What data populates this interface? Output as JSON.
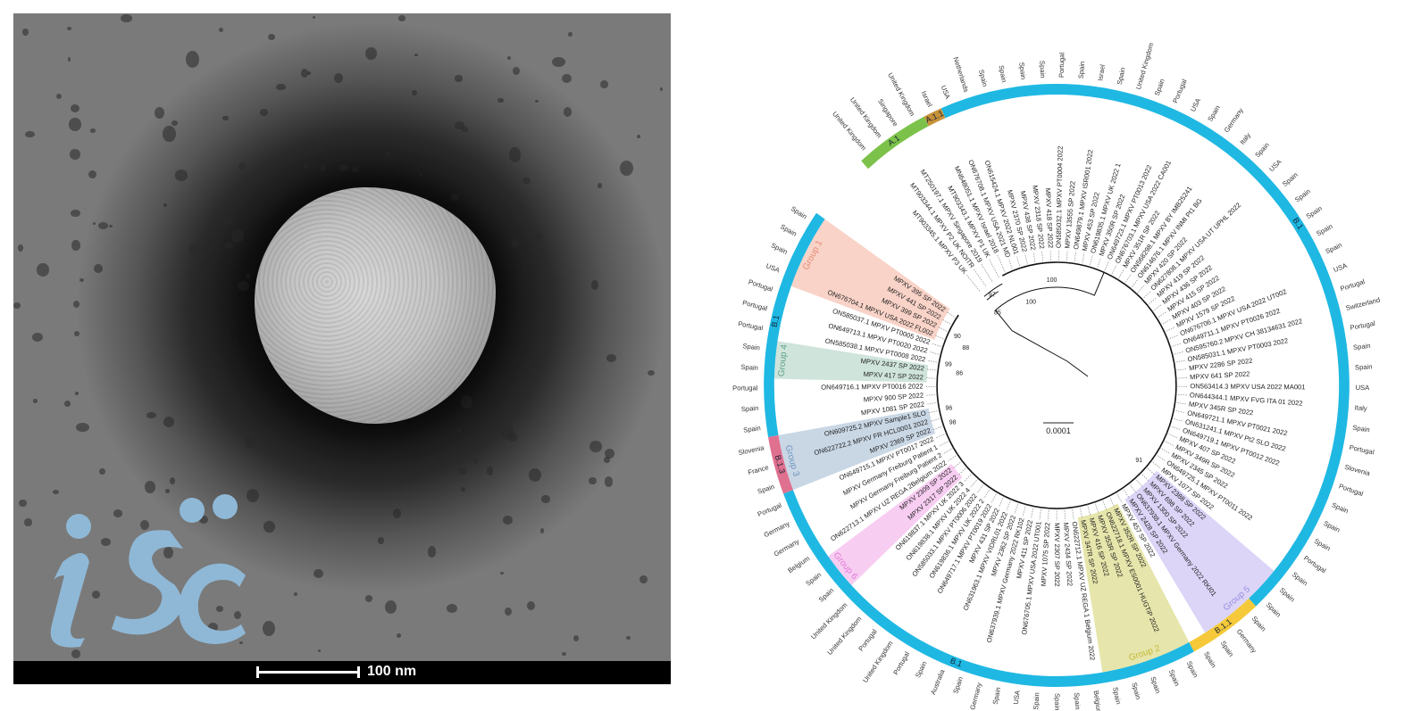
{
  "micrograph": {
    "scale_label": "100 nm",
    "logo_text": "iSC"
  },
  "tree": {
    "scale_label": "0.0001",
    "bootstrap_labels": [
      "100",
      "100",
      "97",
      "85",
      "90",
      "88",
      "99",
      "86",
      "96",
      "98",
      "91"
    ],
    "leaves": [
      "MPXV 395 SP 2022",
      "MPXV 441 SP 2022",
      "MPXV 399 SP 2022",
      "ON676704.1 MPXV USA 2022 FL002",
      "ON585037.1 MPXV PT0005 2022",
      "ON649713.1 MPXV PT0020 2022",
      "ON585038.1 MPXV PT0008 2022",
      "MPXV 2437 SP 2022",
      "MPXV 417 SP 2022",
      "ON649716.1 MPXV PT0016 2022",
      "MPXV 900 SP 2022",
      "MPXV 1081 SP 2022",
      "ON609725.2 MPXV Sample1 SLO",
      "ON622722.2 MPXV FR HCL0001 2022",
      "MPXV 2369 SP 2022",
      "ON649715.1 MPXV PT0017 2022",
      "MPXV Germany Freiburg Patient 1",
      "MPXV Germany Freiburg Patient 2",
      "ON622713.1 MPXV UZ REGA 2Belgium 2022",
      "MPXV 2309 SP 2022",
      "MPXV 2317 SP 2022",
      "ON619837.1 MPXV UK 2022 3",
      "ON619838.1 MPXV UK 2022 4",
      "ON585033.1 MPXV PT0006 2022",
      "ON619836.1 MPXV UK 2022 2",
      "ON649717.1 MPXV PT0019 2022",
      "MPXV 431 SP 2022",
      "ON631963.1 MPXV VIDRL01 2022",
      "MPXV 2362 SP 2022",
      "ON637939.1 MPXV Germany 2022 RK102",
      "MPXV 411 SP 2022",
      "ON676705.1 MPXV USA 2022 UT001",
      "MPXV 1075 SP 2022",
      "MPXV 2307 SP 2022",
      "MPXV 2434 SP 2022",
      "ON622712.1 MPXV UZ REGA 1 Belgium 2022",
      "MPXV 347R SP 2022",
      "MPXV 416 SP 2022",
      "MPXV 353R SP 2022",
      "ON622718.1 MPXV ES0001 HUGTiP 2022",
      "MPXV 352R SP 2022",
      "MPXV 457 SP 2022",
      "MPXV 2428 SP 2022",
      "ON637938.1 MPXV Germany 2022 RKI01",
      "MPXV 1300 SP 2022",
      "MPXV 698 SP 2022",
      "MPXV 2388 SP 2022",
      "MPXV 1077 SP 2022",
      "ON649725.1 MPXV PT0011 2022",
      "MPXV 2345 SP 2022",
      "MPXV 349R SP 2022",
      "MPXV 407 SP 2022",
      "ON649719.1 MPXV PT0012 2022",
      "ON631241.1 MPXV Pt2 SLO 2022",
      "ON649721.1 MPXV PT0021 2022",
      "MPXV 345R SP 2022",
      "ON644344.1 MPXV FVG ITA 01 2022",
      "ON563414.3 MPXV USA 2022 MA001",
      "MPXV 641 SP 2022",
      "MPXV 2286 SP 2022",
      "ON585031.1 MPXV PT0003 2022",
      "ON595760.2 MPXV CH 38134631 2022",
      "ON649711.1 MPXV PT0026 2022",
      "ON676706.1 MPXV USA 2022 UT002",
      "MPXV 1579 SP 2022",
      "MPXV 403 SP 2022",
      "MPXV 415 SP 2022",
      "MPXV 436 SP 2022",
      "MPXV 419 SP 2022",
      "ON627808.1 MPXV USA UT UPHL 2022",
      "MPXV 420 SP 2022",
      "ON614676.1 MPXV INMI Pt1 BG",
      "ON568298.1 MPXV BY IMB25241",
      "MPXV 351R SP 2022",
      "ON676703.1 MPXV USA 2022 CA001",
      "ON649723.1 MPXV PT0013 2022",
      "MPXV 350R SP 2022",
      "ON619835.1 MPXV UK 2022 1",
      "MPXV 453 SP 2022",
      "ON649879.1 MPXV ISR001 2022",
      "MPXV 13555 SP 2022",
      "ON585032.1 MPXV PT0004 2022",
      "MPXV 418 SP 2022",
      "MPXV 2318 SP 2022",
      "MPXV 438 SP 2022",
      "MPXV 2370 SP 2022",
      "ON615424.1 MPXV 2022 NL001",
      "ON676708.1 MPXV USA 2021 MD",
      "MN648051.1 MPXV Israel 2018",
      "MT903343.1 MPXV P1 UK",
      "MT250197.1 MPXV Singapore 2019",
      "MT903344.1 MPXV P2 UK NOITR",
      "MT903345.1 MPXV P3 UK"
    ],
    "countries": [
      "Spain",
      "Spain",
      "Spain",
      "USA",
      "Portugal",
      "Portugal",
      "Portugal",
      "Spain",
      "Spain",
      "Portugal",
      "Spain",
      "Spain",
      "Slovenia",
      "France",
      "Spain",
      "Portugal",
      "Germany",
      "Germany",
      "Belgium",
      "Spain",
      "Spain",
      "United Kingdom",
      "United Kingdom",
      "Portugal",
      "United Kingdom",
      "Portugal",
      "Spain",
      "Australia",
      "Spain",
      "Germany",
      "Spain",
      "USA",
      "Spain",
      "Spain",
      "Spain",
      "Belgium",
      "Spain",
      "Spain",
      "Spain",
      "Spain",
      "Spain",
      "Spain",
      "Spain",
      "Germany",
      "Spain",
      "Spain",
      "Spain",
      "Spain",
      "Portugal",
      "Spain",
      "Spain",
      "Spain",
      "Portugal",
      "Slovenia",
      "Portugal",
      "Spain",
      "Italy",
      "USA",
      "Spain",
      "Spain",
      "Portugal",
      "Switzerland",
      "Portugal",
      "USA",
      "Spain",
      "Spain",
      "Spain",
      "Spain",
      "Spain",
      "USA",
      "Spain",
      "Italy",
      "Germany",
      "Spain",
      "USA",
      "Portugal",
      "Spain",
      "United Kingdom",
      "Spain",
      "Israel",
      "Spain",
      "Portugal",
      "Spain",
      "Spain",
      "Spain",
      "Spain",
      "Netherlands",
      "USA",
      "Israel",
      "United Kingdom",
      "Singapore",
      "United Kingdom",
      "United Kingdom"
    ],
    "clades": [
      {
        "label": "B.1",
        "from": 0,
        "to": 11,
        "color": "#1fb8e3"
      },
      {
        "label": "B.1.3",
        "from": 12,
        "to": 14,
        "color": "#e0708f"
      },
      {
        "label": "B.1",
        "from": 15,
        "to": 40,
        "color": "#1fb8e3"
      },
      {
        "label": "B.1.1",
        "from": 41,
        "to": 44,
        "color": "#f5c93a"
      },
      {
        "label": "B.1",
        "from": 45,
        "to": 87,
        "color": "#1fb8e3"
      },
      {
        "label": "A.1.1",
        "from": 88,
        "to": 88,
        "color": "#c8923a"
      },
      {
        "label": "A.1",
        "from": 89,
        "to": 92,
        "color": "#7cc24a"
      }
    ],
    "groups": [
      {
        "label": "Group 1",
        "from": 0,
        "to": 3,
        "color": "#f9d3c8",
        "text_color": "#e58b77"
      },
      {
        "label": "Group 4",
        "from": 7,
        "to": 8,
        "color": "#cfe4db",
        "text_color": "#5fa48a"
      },
      {
        "label": "Group 3",
        "from": 12,
        "to": 14,
        "color": "#c9d7e5",
        "text_color": "#6f95c0"
      },
      {
        "label": "Group 6",
        "from": 19,
        "to": 20,
        "color": "#f8cdf2",
        "text_color": "#e07ad6"
      },
      {
        "label": "Group 2",
        "from": 36,
        "to": 40,
        "color": "#e6e5ab",
        "text_color": "#c4b93a"
      },
      {
        "label": "Group 5",
        "from": 42,
        "to": 46,
        "color": "#dcd5f8",
        "text_color": "#9a8fe0"
      }
    ]
  }
}
